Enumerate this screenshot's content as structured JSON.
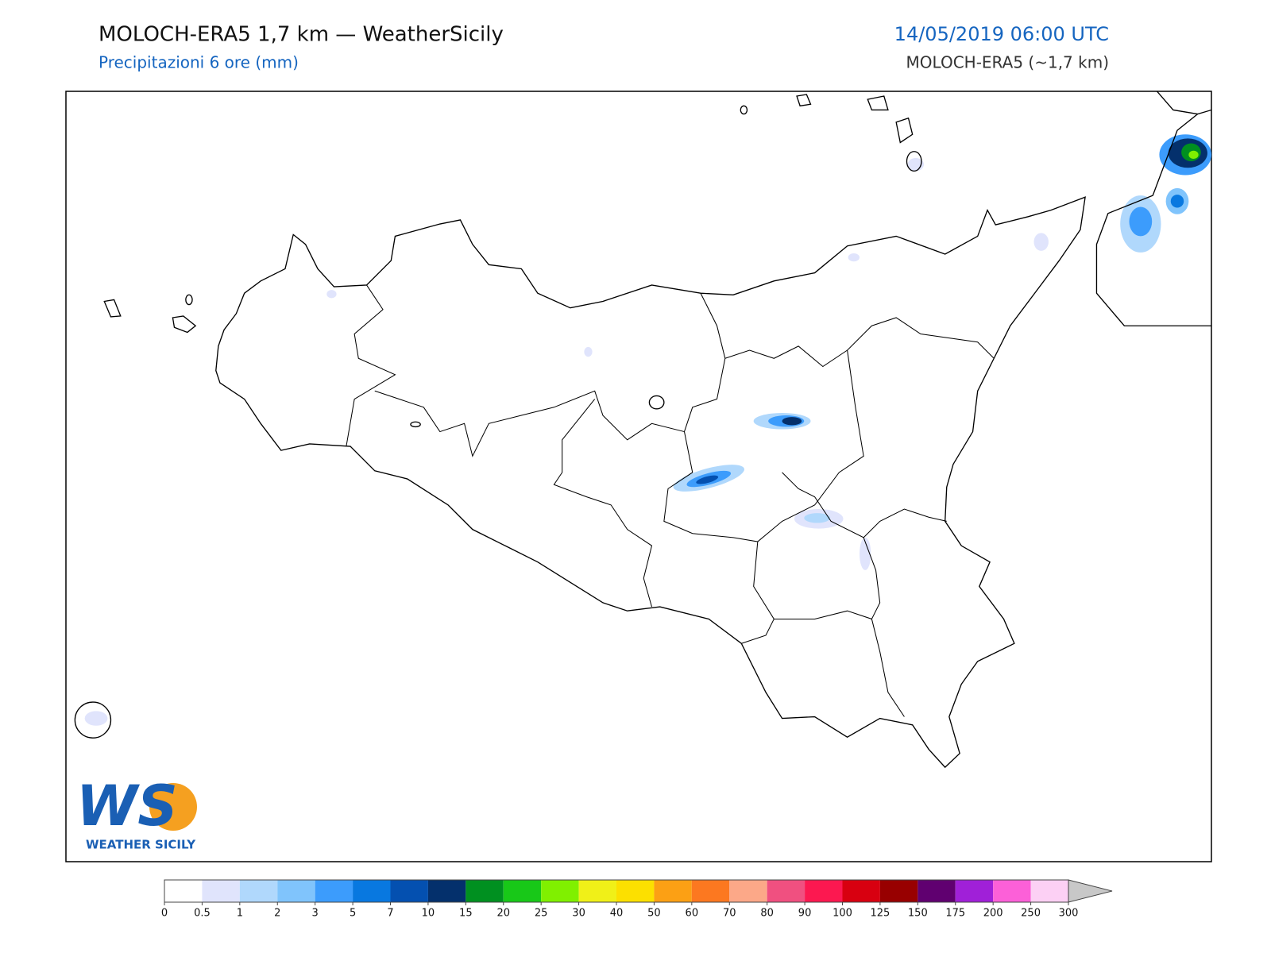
{
  "header": {
    "title": "MOLOCH-ERA5 1,7 km — WeatherSicily",
    "subtitle": "Precipitazioni 6 ore (mm)",
    "datetime": "14/05/2019 06:00 UTC",
    "model": "MOLOCH-ERA5 (~1,7 km)"
  },
  "logo": {
    "mark": "WS",
    "text": "WEATHER SICILY"
  },
  "colorbar": {
    "ticks": [
      0,
      0.5,
      1,
      2,
      3,
      5,
      7,
      10,
      15,
      20,
      25,
      30,
      40,
      50,
      60,
      70,
      80,
      90,
      100,
      125,
      150,
      175,
      200,
      250,
      300
    ],
    "colors": [
      "#ffffff",
      "#e0e4fc",
      "#b0d8fc",
      "#80c4fc",
      "#3c9cfc",
      "#0878e0",
      "#0450b0",
      "#04306c",
      "#009020",
      "#18c818",
      "#80f000",
      "#f0f018",
      "#fce000",
      "#fca014",
      "#fc7820",
      "#fca888",
      "#f05080",
      "#fc1850",
      "#d80010",
      "#980000",
      "#600070",
      "#a020d8",
      "#fc60d8",
      "#fcd0f4"
    ]
  }
}
